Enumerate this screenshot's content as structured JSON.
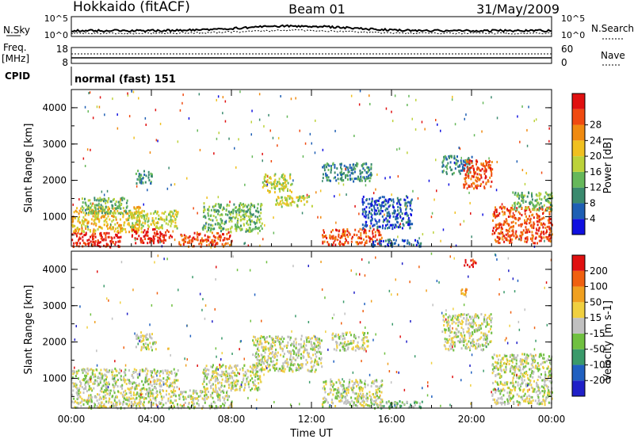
{
  "header": {
    "station": "Hokkaido (fitACF)",
    "beam": "Beam 01",
    "date": "31/May/2009"
  },
  "panels": {
    "nsky_label": "N.Sky",
    "nsky_ticks": [
      "10^5",
      "10^0"
    ],
    "nsearch_label": "N.Search",
    "nsearch_ticks": [
      "10^5",
      "10^0"
    ],
    "freq_label": "Freq.",
    "freq_unit": "[MHz]",
    "freq_ticks": [
      "18",
      "8"
    ],
    "nave_label": "Nave",
    "nave_ticks": [
      "60",
      "0"
    ],
    "cpid_label": "CPID",
    "cpid_value": "normal (fast) 151"
  },
  "colors": {
    "power": [
      "#1010e0",
      "#1e5fb4",
      "#3a8a6e",
      "#66b85a",
      "#bcd23a",
      "#f0c020",
      "#f08a10",
      "#f04a10",
      "#e01010"
    ],
    "velocity": [
      "#2020c8",
      "#2060c0",
      "#3a9a6a",
      "#70c040",
      "#c0c0c0",
      "#f0d040",
      "#f0a020",
      "#f06010",
      "#e01010"
    ]
  },
  "chart_data": [
    {
      "type": "heatmap",
      "title": "Power",
      "xlabel": "",
      "ylabel": "Slant Range [km]",
      "colorbar_label": "Power [dB]",
      "colorbar_ticks": [
        "4",
        "8",
        "12",
        "16",
        "20",
        "24",
        "28"
      ],
      "x_ticks": [
        "00:00",
        "04:00",
        "08:00",
        "12:00",
        "16:00",
        "20:00",
        "00:00"
      ],
      "y_ticks": [
        "1000",
        "2000",
        "3000",
        "4000"
      ],
      "xlim": [
        0,
        24
      ],
      "ylim": [
        180,
        4500
      ],
      "regions": [
        {
          "x": [
            0.0,
            2.5
          ],
          "y": [
            180,
            600
          ],
          "level": 8
        },
        {
          "x": [
            0.0,
            3.5
          ],
          "y": [
            600,
            1300
          ],
          "level": 5
        },
        {
          "x": [
            0.5,
            2.8
          ],
          "y": [
            1100,
            1550
          ],
          "level": 3
        },
        {
          "x": [
            3.0,
            5.0
          ],
          "y": [
            300,
            700
          ],
          "level": 8
        },
        {
          "x": [
            2.8,
            5.3
          ],
          "y": [
            700,
            1200
          ],
          "level": 4
        },
        {
          "x": [
            3.2,
            4.0
          ],
          "y": [
            1900,
            2300
          ],
          "level": 2
        },
        {
          "x": [
            5.3,
            8.0
          ],
          "y": [
            200,
            600
          ],
          "level": 7
        },
        {
          "x": [
            6.5,
            9.5
          ],
          "y": [
            600,
            1400
          ],
          "level": 3
        },
        {
          "x": [
            9.5,
            11.0
          ],
          "y": [
            1700,
            2200
          ],
          "level": 4
        },
        {
          "x": [
            10.0,
            12.0
          ],
          "y": [
            1300,
            1600
          ],
          "level": 4
        },
        {
          "x": [
            12.5,
            15.0
          ],
          "y": [
            2000,
            2500
          ],
          "level": 2
        },
        {
          "x": [
            12.5,
            15.5
          ],
          "y": [
            250,
            700
          ],
          "level": 7
        },
        {
          "x": [
            14.5,
            17.0
          ],
          "y": [
            700,
            1600
          ],
          "level": 1
        },
        {
          "x": [
            15.0,
            17.5
          ],
          "y": [
            200,
            400
          ],
          "level": 1
        },
        {
          "x": [
            18.5,
            20.0
          ],
          "y": [
            2200,
            2700
          ],
          "level": 2
        },
        {
          "x": [
            19.5,
            21.0
          ],
          "y": [
            1800,
            2600
          ],
          "level": 7
        },
        {
          "x": [
            21.0,
            24.0
          ],
          "y": [
            300,
            1300
          ],
          "level": 7
        },
        {
          "x": [
            22.0,
            24.0
          ],
          "y": [
            1200,
            1700
          ],
          "level": 3
        }
      ]
    },
    {
      "type": "heatmap",
      "title": "Velocity",
      "xlabel": "Time UT",
      "ylabel": "Slant Range [km]",
      "colorbar_label": "Velocity [m s-1]",
      "colorbar_ticks": [
        "-200",
        "-100",
        "-50",
        "-15",
        "15",
        "50",
        "100",
        "200"
      ],
      "x_ticks": [
        "00:00",
        "04:00",
        "08:00",
        "12:00",
        "16:00",
        "20:00",
        "00:00"
      ],
      "y_ticks": [
        "1000",
        "2000",
        "3000",
        "4000"
      ],
      "xlim": [
        0,
        24
      ],
      "ylim": [
        180,
        4500
      ],
      "regions": [
        {
          "x": [
            0.0,
            5.3
          ],
          "y": [
            200,
            1300
          ],
          "level": 4
        },
        {
          "x": [
            3.2,
            4.2
          ],
          "y": [
            1800,
            2300
          ],
          "level": 4
        },
        {
          "x": [
            5.3,
            8.0
          ],
          "y": [
            200,
            700
          ],
          "level": 4
        },
        {
          "x": [
            6.5,
            9.5
          ],
          "y": [
            700,
            1400
          ],
          "level": 4
        },
        {
          "x": [
            9.0,
            12.5
          ],
          "y": [
            1200,
            2200
          ],
          "level": 4
        },
        {
          "x": [
            12.5,
            15.5
          ],
          "y": [
            250,
            1000
          ],
          "level": 4
        },
        {
          "x": [
            13.0,
            14.8
          ],
          "y": [
            1800,
            2300
          ],
          "level": 4
        },
        {
          "x": [
            15.0,
            17.5
          ],
          "y": [
            200,
            400
          ],
          "level": 3
        },
        {
          "x": [
            18.5,
            21.0
          ],
          "y": [
            1800,
            2800
          ],
          "level": 4
        },
        {
          "x": [
            19.3,
            19.8
          ],
          "y": [
            3300,
            3500
          ],
          "level": 6
        },
        {
          "x": [
            19.6,
            20.2
          ],
          "y": [
            4100,
            4300
          ],
          "level": 8
        },
        {
          "x": [
            21.0,
            24.0
          ],
          "y": [
            300,
            1700
          ],
          "level": 4
        }
      ]
    }
  ]
}
